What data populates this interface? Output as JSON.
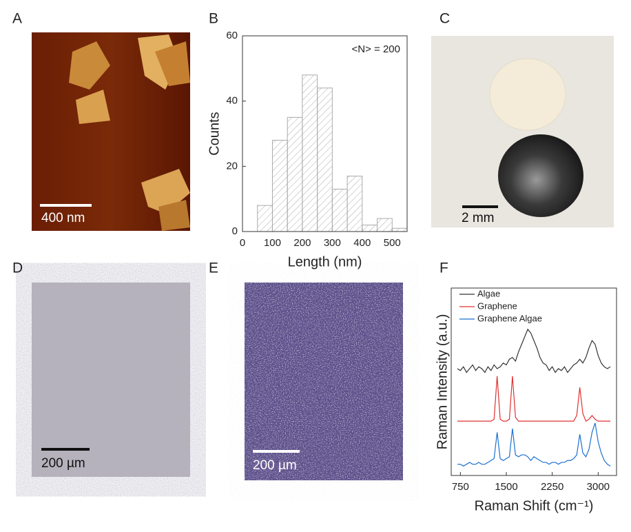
{
  "panels": {
    "labels": [
      "A",
      "B",
      "C",
      "D",
      "E",
      "F"
    ],
    "scale_bars": [
      "400 nm",
      "2 mm",
      "200 µm",
      "200 µm"
    ]
  },
  "chart_data": [
    {
      "type": "histogram",
      "xlabel": "Length (nm)",
      "ylabel": "Counts",
      "annotation": "<N> = 200",
      "bins": [
        50,
        100,
        150,
        200,
        250,
        300,
        350,
        400,
        450,
        500,
        550
      ],
      "values": [
        8,
        28,
        35,
        48,
        44,
        13,
        17,
        2,
        4,
        1
      ],
      "color": "#aaaaaa",
      "xlim": [
        0,
        550
      ],
      "ylim": [
        0,
        60
      ],
      "xticks": [
        0,
        100,
        200,
        300,
        400,
        500
      ],
      "yticks": [
        0,
        20,
        40,
        60
      ]
    },
    {
      "type": "line",
      "xlabel": "Raman Shift (cm⁻¹)",
      "ylabel": "Raman Intensity (a.u.)",
      "legend": "upper left",
      "x": [
        700,
        750,
        800,
        850,
        900,
        950,
        1000,
        1050,
        1100,
        1150,
        1200,
        1250,
        1300,
        1350,
        1400,
        1450,
        1500,
        1550,
        1600,
        1650,
        1700,
        1750,
        1800,
        1850,
        1900,
        1950,
        2000,
        2050,
        2100,
        2150,
        2200,
        2250,
        2300,
        2350,
        2400,
        2450,
        2500,
        2550,
        2600,
        2650,
        2700,
        2750,
        2800,
        2850,
        2900,
        2950,
        3000,
        3050,
        3100,
        3150,
        3200
      ],
      "series": [
        {
          "name": "Algae",
          "color": "#333333",
          "values": [
            5.7,
            5.6,
            5.8,
            5.5,
            5.7,
            5.9,
            5.6,
            5.8,
            5.7,
            5.5,
            5.8,
            5.6,
            5.9,
            5.7,
            5.8,
            6.0,
            5.9,
            6.2,
            6.3,
            6.1,
            6.6,
            7.0,
            7.4,
            7.8,
            7.6,
            7.2,
            6.8,
            6.3,
            6.0,
            5.9,
            5.6,
            5.8,
            5.5,
            5.7,
            5.6,
            5.8,
            5.5,
            5.7,
            5.9,
            6.0,
            6.2,
            6.0,
            6.3,
            6.8,
            7.2,
            7.0,
            6.4,
            6.0,
            5.8,
            5.7,
            5.8
          ]
        },
        {
          "name": "Graphene",
          "color": "#e03030",
          "values": [
            2.9,
            2.9,
            2.9,
            2.9,
            2.9,
            2.9,
            2.9,
            2.9,
            2.9,
            2.9,
            2.9,
            2.9,
            3.0,
            5.3,
            3.0,
            2.9,
            2.9,
            3.0,
            5.3,
            3.1,
            2.9,
            2.9,
            2.9,
            2.9,
            2.9,
            2.9,
            2.9,
            2.9,
            2.9,
            2.9,
            2.9,
            2.9,
            2.9,
            2.9,
            2.9,
            2.9,
            2.9,
            2.9,
            2.9,
            3.2,
            4.7,
            3.3,
            2.9,
            3.0,
            3.2,
            3.0,
            2.9,
            2.9,
            2.9,
            2.9,
            2.9
          ]
        },
        {
          "name": "Graphene Algae",
          "color": "#1a6fd0",
          "values": [
            0.6,
            0.6,
            0.5,
            0.6,
            0.7,
            0.6,
            0.6,
            0.7,
            0.6,
            0.6,
            0.7,
            0.8,
            0.9,
            2.3,
            0.9,
            0.8,
            0.9,
            1.0,
            2.5,
            1.1,
            1.0,
            1.1,
            1.1,
            1.0,
            0.8,
            1.0,
            0.9,
            0.8,
            0.7,
            0.7,
            0.6,
            0.7,
            0.7,
            0.6,
            0.7,
            0.7,
            0.8,
            0.8,
            0.9,
            1.1,
            2.2,
            1.2,
            1.0,
            1.4,
            2.3,
            2.8,
            1.8,
            1.2,
            0.8,
            0.6,
            0.5
          ]
        }
      ],
      "xlim": [
        600,
        3300
      ],
      "ylim": [
        0,
        10
      ],
      "xticks": [
        750,
        1500,
        2250,
        3000
      ]
    }
  ]
}
